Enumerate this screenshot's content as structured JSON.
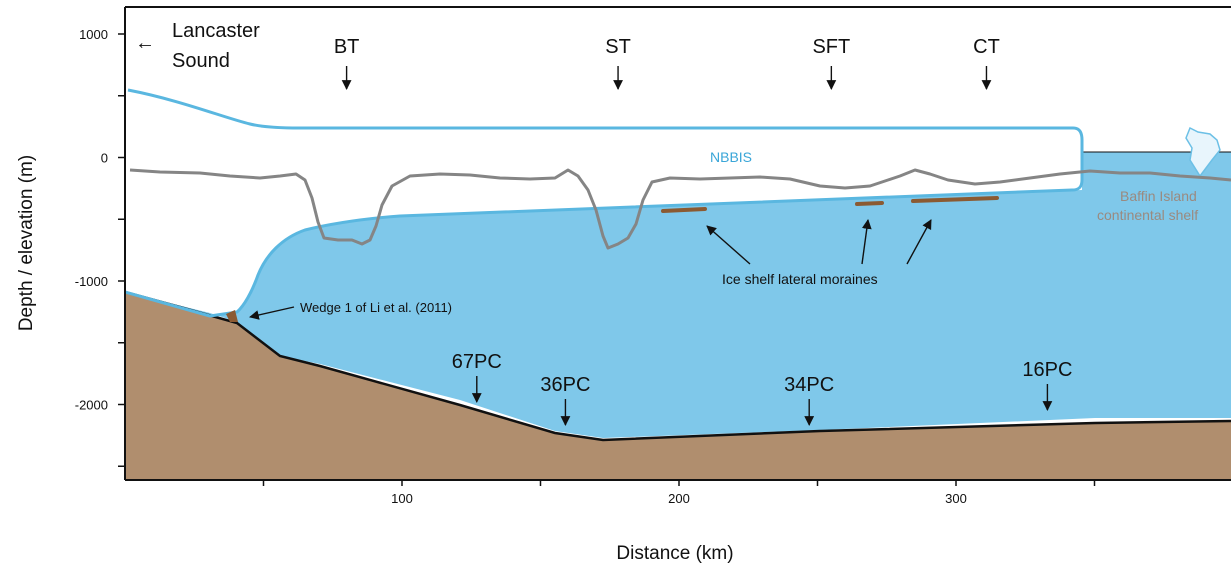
{
  "figure": {
    "x_axis_title": "Distance (km)",
    "y_axis_title": "Depth / elevation (m)",
    "x_ticks": [
      "100",
      "200",
      "300"
    ],
    "y_ticks": [
      "1000",
      "0",
      "-1000",
      "-2000"
    ],
    "x_range_km": [
      0,
      398
    ],
    "y_range_m": [
      -2600,
      1200
    ]
  },
  "labels": {
    "lancaster_arrow": "←",
    "lancaster_line1": "Lancaster",
    "lancaster_line2": "Sound",
    "nbbis": "NBBIS",
    "baffin_line1": "Baffin Island",
    "baffin_line2": "continental shelf",
    "moraines": "Ice shelf lateral moraines",
    "wedge": "Wedge 1 of Li et al. (2011)"
  },
  "troughs": [
    {
      "label": "BT",
      "km": 80
    },
    {
      "label": "ST",
      "km": 178
    },
    {
      "label": "SFT",
      "km": 255
    },
    {
      "label": "CT",
      "km": 311
    }
  ],
  "cores": [
    {
      "label": "67PC",
      "km": 127
    },
    {
      "label": "36PC",
      "km": 159
    },
    {
      "label": "34PC",
      "km": 247
    },
    {
      "label": "16PC",
      "km": 333
    }
  ],
  "colors": {
    "seabed": "#b08e6e",
    "ocean": "#7fc8ea",
    "ice_outline": "#5ab7e0",
    "nbbis_text": "#3aa6d8",
    "bathymetry_profile": "#858585",
    "baffin_text": "#9a8a80",
    "moraine": "#8b5a32",
    "axis": "#111111"
  }
}
